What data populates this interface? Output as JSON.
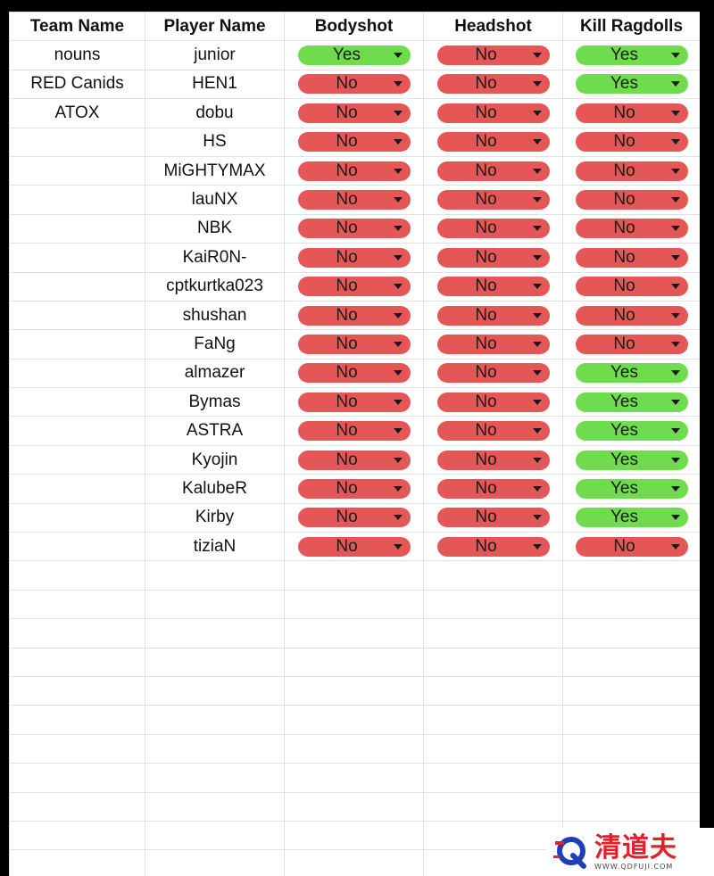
{
  "table": {
    "headers": [
      "Team Name",
      "Player Name",
      "Bodyshot",
      "Headshot",
      "Kill Ragdolls"
    ],
    "rows": [
      {
        "team": "nouns",
        "player": "junior",
        "bodyshot": "Yes",
        "headshot": "No",
        "kill_ragdolls": "Yes"
      },
      {
        "team": "RED Canids",
        "player": "HEN1",
        "bodyshot": "No",
        "headshot": "No",
        "kill_ragdolls": "Yes"
      },
      {
        "team": "ATOX",
        "player": "dobu",
        "bodyshot": "No",
        "headshot": "No",
        "kill_ragdolls": "No"
      },
      {
        "team": "",
        "player": "HS",
        "bodyshot": "No",
        "headshot": "No",
        "kill_ragdolls": "No"
      },
      {
        "team": "",
        "player": "MiGHTYMAX",
        "bodyshot": "No",
        "headshot": "No",
        "kill_ragdolls": "No"
      },
      {
        "team": "",
        "player": "lauNX",
        "bodyshot": "No",
        "headshot": "No",
        "kill_ragdolls": "No"
      },
      {
        "team": "",
        "player": "NBK",
        "bodyshot": "No",
        "headshot": "No",
        "kill_ragdolls": "No"
      },
      {
        "team": "",
        "player": "KaiR0N-",
        "bodyshot": "No",
        "headshot": "No",
        "kill_ragdolls": "No"
      },
      {
        "team": "",
        "player": "cptkurtka023",
        "bodyshot": "No",
        "headshot": "No",
        "kill_ragdolls": "No"
      },
      {
        "team": "",
        "player": "shushan",
        "bodyshot": "No",
        "headshot": "No",
        "kill_ragdolls": "No"
      },
      {
        "team": "",
        "player": "FaNg",
        "bodyshot": "No",
        "headshot": "No",
        "kill_ragdolls": "No"
      },
      {
        "team": "",
        "player": "almazer",
        "bodyshot": "No",
        "headshot": "No",
        "kill_ragdolls": "Yes"
      },
      {
        "team": "",
        "player": "Bymas",
        "bodyshot": "No",
        "headshot": "No",
        "kill_ragdolls": "Yes"
      },
      {
        "team": "",
        "player": "ASTRA",
        "bodyshot": "No",
        "headshot": "No",
        "kill_ragdolls": "Yes"
      },
      {
        "team": "",
        "player": "Kyojin",
        "bodyshot": "No",
        "headshot": "No",
        "kill_ragdolls": "Yes"
      },
      {
        "team": "",
        "player": "KalubeR",
        "bodyshot": "No",
        "headshot": "No",
        "kill_ragdolls": "Yes"
      },
      {
        "team": "",
        "player": "Kirby",
        "bodyshot": "No",
        "headshot": "No",
        "kill_ragdolls": "Yes"
      },
      {
        "team": "",
        "player": "tiziaN",
        "bodyshot": "No",
        "headshot": "No",
        "kill_ragdolls": "No"
      }
    ],
    "empty_rows": 11
  },
  "colors": {
    "yes": "#6fdc4e",
    "no": "#e45756",
    "grid": "#e2e2e2"
  },
  "icons": {
    "chip_caret": "caret-down-icon",
    "watermark_logo": "q-logo-icon"
  },
  "watermark": {
    "title": "清道夫",
    "url": "WWW.QDFUJI.COM"
  }
}
